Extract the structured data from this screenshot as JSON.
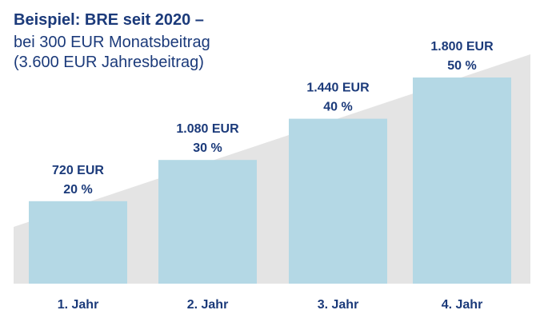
{
  "chart_data": {
    "type": "bar",
    "title": "Beispiel: BRE seit 2020 –",
    "subtitle_lines": [
      "bei 300 EUR Monatsbeitrag",
      "(3.600 EUR Jahresbeitrag)"
    ],
    "categories": [
      "1. Jahr",
      "2. Jahr",
      "3. Jahr",
      "4. Jahr"
    ],
    "values": [
      720,
      1080,
      1440,
      1800
    ],
    "value_labels": [
      "720 EUR",
      "1.080 EUR",
      "1.440 EUR",
      "1.800 EUR"
    ],
    "percent_labels": [
      "20 %",
      "30 %",
      "40 %",
      "50 %"
    ],
    "ylim": [
      0,
      1800
    ],
    "grid": false,
    "legend": "none",
    "background_shape": "rising-wedge"
  },
  "colors": {
    "bar": "#b4d8e5",
    "wedge": "#e4e4e4",
    "label": "#1b3a7a",
    "title": "#1b3a7a"
  }
}
